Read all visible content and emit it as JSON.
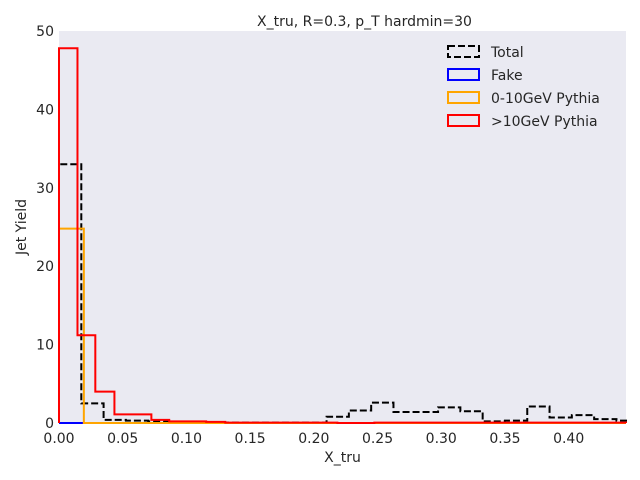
{
  "chart_data": {
    "type": "step-histogram",
    "title": "X_tru, R=0.3, p_T hardmin=30",
    "xlabel": "X_tru",
    "ylabel": "Jet Yield",
    "xlim": [
      0,
      0.445
    ],
    "ylim": [
      0,
      50
    ],
    "xticks": [
      0.0,
      0.05,
      0.1,
      0.15,
      0.2,
      0.25,
      0.3,
      0.35,
      0.4
    ],
    "xtick_labels": [
      "0.00",
      "0.05",
      "0.10",
      "0.15",
      "0.20",
      "0.25",
      "0.30",
      "0.35",
      "0.40"
    ],
    "yticks": [
      0,
      10,
      20,
      30,
      40,
      50
    ],
    "ytick_labels": [
      "0",
      "10",
      "20",
      "30",
      "40",
      "50"
    ],
    "grid": false,
    "background": "#eaeaf2",
    "legend_position": "top-right",
    "series": [
      {
        "name": "Total",
        "color": "#000000",
        "style": "dashed",
        "edges": [
          0,
          0.0175,
          0.035,
          0.0525,
          0.07,
          0.0875,
          0.105,
          0.1225,
          0.14,
          0.1575,
          0.175,
          0.1925,
          0.21,
          0.2275,
          0.245,
          0.2625,
          0.28,
          0.2975,
          0.315,
          0.3325,
          0.35,
          0.3675,
          0.385,
          0.4025,
          0.42,
          0.4375,
          0.445
        ],
        "values": [
          33,
          2.5,
          0.4,
          0.3,
          0.2,
          0.1,
          0.1,
          0.05,
          0.05,
          0.05,
          0.05,
          0.05,
          0.8,
          1.6,
          2.6,
          1.4,
          1.4,
          2.0,
          1.5,
          0.2,
          0.3,
          2.1,
          0.7,
          1.0,
          0.5,
          0.3
        ]
      },
      {
        "name": "Fake",
        "color": "#0000ff",
        "style": "solid",
        "edges": [
          0,
          0.445
        ],
        "values": [
          0
        ]
      },
      {
        "name": "0-10GeV Pythia",
        "color": "#ffa500",
        "style": "solid",
        "edges": [
          0,
          0.0195,
          0.445
        ],
        "values": [
          24.8,
          0
        ]
      },
      {
        "name": ">10GeV Pythia",
        "color": "#ff0000",
        "style": "solid",
        "edges": [
          0,
          0.0145,
          0.0285,
          0.0435,
          0.0725,
          0.0865,
          0.1155,
          0.1305,
          0.2185,
          0.2475,
          0.445
        ],
        "values": [
          47.8,
          11.2,
          4.0,
          1.1,
          0.4,
          0.2,
          0.15,
          0.05,
          0.0,
          0.05
        ]
      }
    ]
  }
}
